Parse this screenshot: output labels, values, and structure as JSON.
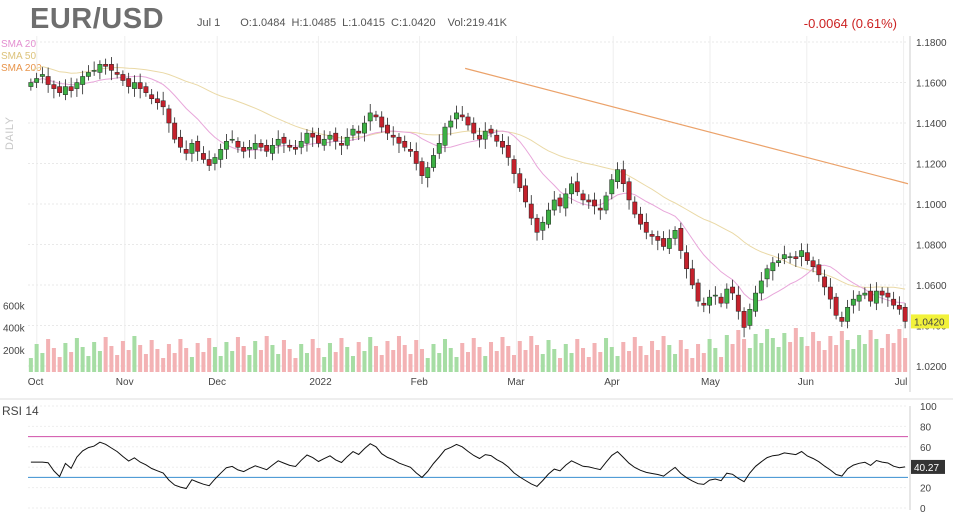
{
  "header": {
    "symbol": "EUR/USD",
    "date": "Jul 1",
    "open": "O:1.0484",
    "high": "H:1.0485",
    "low": "L:1.0415",
    "close": "C:1.0420",
    "volume": "Vol:219.41K",
    "change": "-0.0064 (0.61%)"
  },
  "period_label": "DAILY",
  "legend": [
    {
      "label": "SMA 20",
      "color": "#e38fd0"
    },
    {
      "label": "SMA 50",
      "color": "#e8d08a"
    },
    {
      "label": "SMA 200",
      "color": "#e8944a"
    }
  ],
  "last_price_label": "1.0420",
  "rsi": {
    "title": "RSI 14",
    "value_label": "40.27"
  },
  "chart_data": [
    {
      "type": "candlestick",
      "title": "EUR/USD",
      "x_ticks": [
        "Oct",
        "Nov",
        "Dec",
        "2022",
        "Feb",
        "Mar",
        "Apr",
        "May",
        "Jun",
        "Jul"
      ],
      "y_ticks": [
        "1.1800",
        "1.1600",
        "1.1400",
        "1.1200",
        "1.1000",
        "1.0800",
        "1.0600",
        "1.0400",
        "1.0200"
      ],
      "ylim": [
        1.018,
        1.182
      ],
      "grid": true,
      "last_close": 1.042,
      "close_series": [
        1.16,
        1.162,
        1.164,
        1.159,
        1.157,
        1.155,
        1.158,
        1.156,
        1.16,
        1.163,
        1.165,
        1.166,
        1.169,
        1.168,
        1.166,
        1.164,
        1.161,
        1.158,
        1.16,
        1.157,
        1.155,
        1.152,
        1.15,
        1.148,
        1.14,
        1.132,
        1.128,
        1.125,
        1.13,
        1.126,
        1.122,
        1.119,
        1.123,
        1.127,
        1.131,
        1.132,
        1.128,
        1.126,
        1.128,
        1.13,
        1.128,
        1.126,
        1.129,
        1.132,
        1.13,
        1.128,
        1.127,
        1.131,
        1.135,
        1.133,
        1.13,
        1.132,
        1.134,
        1.131,
        1.129,
        1.133,
        1.137,
        1.135,
        1.14,
        1.145,
        1.143,
        1.138,
        1.135,
        1.133,
        1.13,
        1.128,
        1.126,
        1.12,
        1.114,
        1.118,
        1.124,
        1.13,
        1.138,
        1.141,
        1.145,
        1.143,
        1.139,
        1.135,
        1.132,
        1.136,
        1.135,
        1.131,
        1.128,
        1.123,
        1.115,
        1.108,
        1.101,
        1.093,
        1.086,
        1.091,
        1.097,
        1.102,
        1.099,
        1.105,
        1.11,
        1.106,
        1.102,
        1.101,
        1.099,
        1.097,
        1.104,
        1.112,
        1.117,
        1.11,
        1.102,
        1.095,
        1.09,
        1.086,
        1.084,
        1.082,
        1.079,
        1.083,
        1.087,
        1.077,
        1.068,
        1.06,
        1.052,
        1.05,
        1.054,
        1.055,
        1.051,
        1.058,
        1.056,
        1.047,
        1.039,
        1.048,
        1.056,
        1.062,
        1.068,
        1.071,
        1.072,
        1.075,
        1.074,
        1.073,
        1.077,
        1.072,
        1.069,
        1.065,
        1.059,
        1.053,
        1.045,
        1.042,
        1.049,
        1.053,
        1.055,
        1.056,
        1.052,
        1.057,
        1.055,
        1.054,
        1.05,
        1.048,
        1.042
      ],
      "sma200": {
        "start_date_fraction": 0.5,
        "from": 1.167,
        "to": 1.11
      },
      "volume_ticks": [
        "600k",
        "400k",
        "200k"
      ],
      "volume_max": 650000
    },
    {
      "type": "line",
      "title": "RSI 14",
      "y_ticks": [
        "100",
        "80",
        "60",
        "40",
        "20",
        "0"
      ],
      "ylim": [
        0,
        100
      ],
      "overbought": 70,
      "oversold": 30,
      "last_value": 40.27
    }
  ]
}
